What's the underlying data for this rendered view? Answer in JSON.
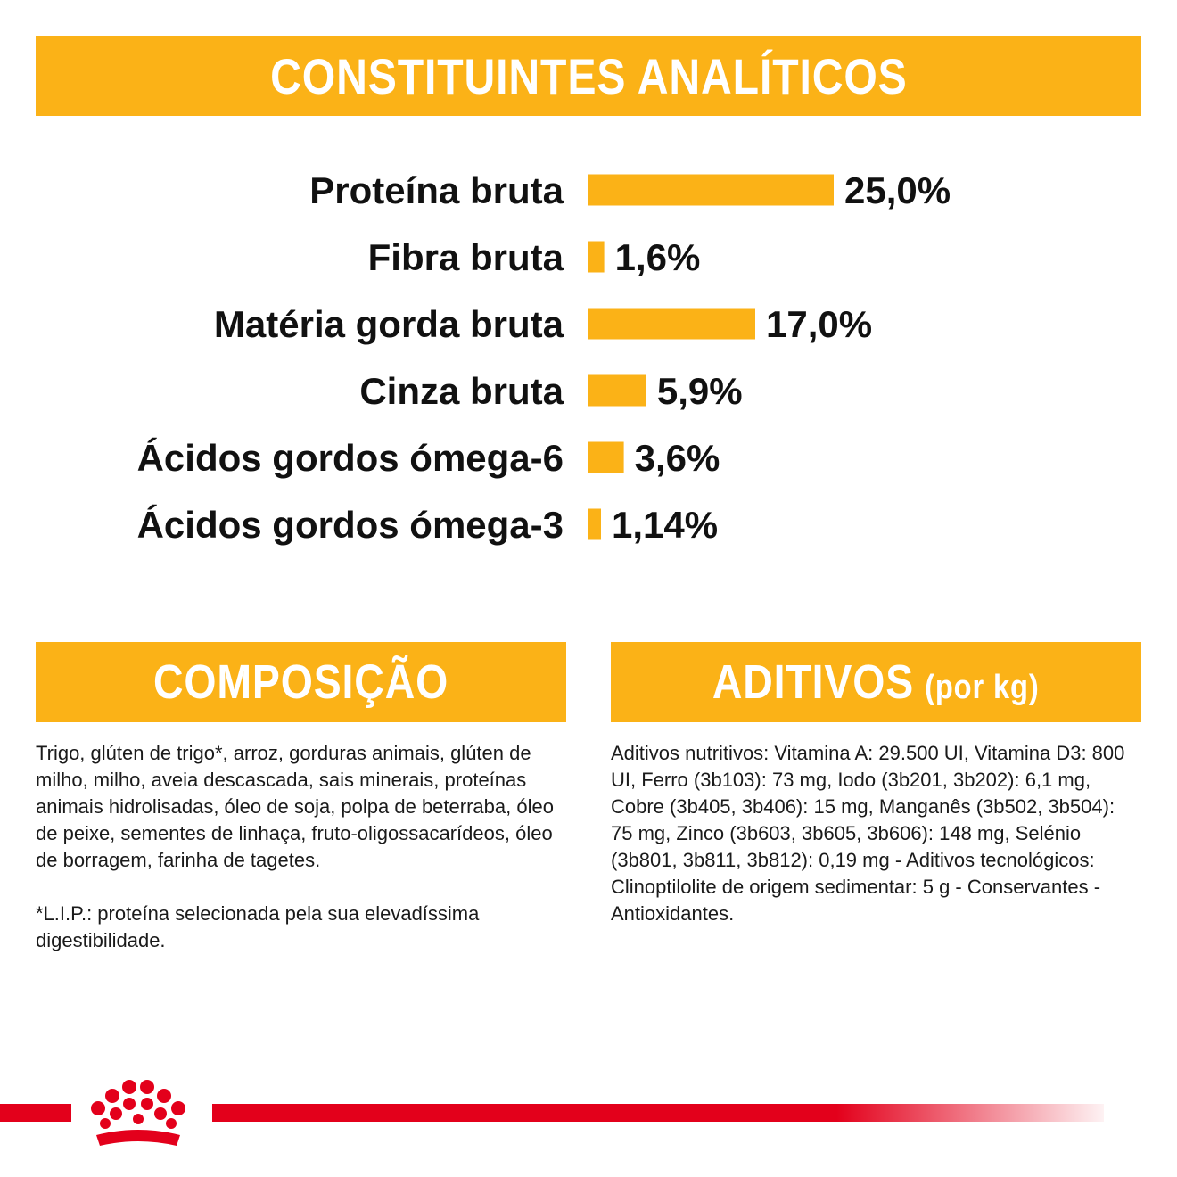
{
  "header": {
    "title": "CONSTITUINTES ANALÍTICOS"
  },
  "chart_data": {
    "type": "bar",
    "orientation": "horizontal",
    "categories": [
      "Proteína bruta",
      "Fibra bruta",
      "Matéria gorda bruta",
      "Cinza bruta",
      "Ácidos gordos ómega-6",
      "Ácidos gordos ómega-3"
    ],
    "values": [
      25.0,
      1.6,
      17.0,
      5.9,
      3.6,
      1.14
    ],
    "value_labels": [
      "25,0%",
      "1,6%",
      "17,0%",
      "5,9%",
      "3,6%",
      "1,14%"
    ],
    "unit": "%",
    "grid": false,
    "legend": "none",
    "bar_color": "#FBB217"
  },
  "composicao": {
    "title": "COMPOSIÇÃO",
    "text": "Trigo, glúten de trigo*, arroz, gorduras animais, glúten de milho, milho, aveia descascada, sais minerais, proteínas animais hidrolisadas, óleo de soja, polpa de beterraba, óleo de peixe, sementes de linhaça, fruto-oligossacarídeos, óleo de borragem, farinha de tagetes.",
    "note": "*L.I.P.: proteína selecionada pela sua elevadíssima digestibilidade."
  },
  "aditivos": {
    "title": "ADITIVOS",
    "subtitle": "(por kg)",
    "text": "Aditivos nutritivos: Vitamina A: 29.500 UI, Vitamina D3: 800 UI, Ferro (3b103): 73 mg, Iodo (3b201, 3b202): 6,1 mg, Cobre (3b405, 3b406): 15 mg, Manganês (3b502, 3b504): 75 mg, Zinco (3b603, 3b605, 3b606): 148 mg, Selénio (3b801, 3b811, 3b812): 0,19 mg - Aditivos tecnológicos: Clinoptilolite de origem sedimentar: 5 g - Conservantes - Antioxidantes."
  },
  "colors": {
    "accent": "#FBB217",
    "brand_red": "#E3001B"
  },
  "footer": {
    "logo_icon": "crown-icon"
  }
}
